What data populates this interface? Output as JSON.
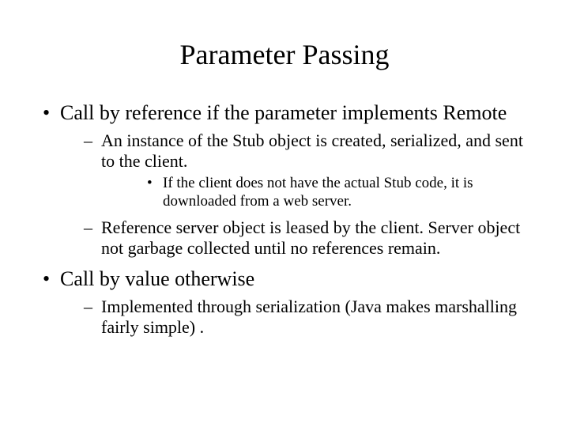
{
  "title": "Parameter Passing",
  "bullets": [
    {
      "text": "Call by reference if the parameter implements Remote",
      "children": [
        {
          "text": "An instance of the Stub object is created, serialized, and sent to the client.",
          "children": [
            {
              "text": "If the client does not have the actual Stub code, it is downloaded from a web server."
            }
          ]
        },
        {
          "text": "Reference server object is leased by the client.  Server object not garbage collected until no references remain."
        }
      ]
    },
    {
      "text": "Call by value otherwise",
      "children": [
        {
          "text": "Implemented through serialization (Java makes marshalling fairly simple) ."
        }
      ]
    }
  ],
  "colors": {
    "background": "#ffffff",
    "text": "#000000"
  },
  "typography": {
    "font_family": "Times New Roman",
    "title_fontsize": 36,
    "lvl1_fontsize": 26,
    "lvl2_fontsize": 22,
    "lvl3_fontsize": 19
  }
}
